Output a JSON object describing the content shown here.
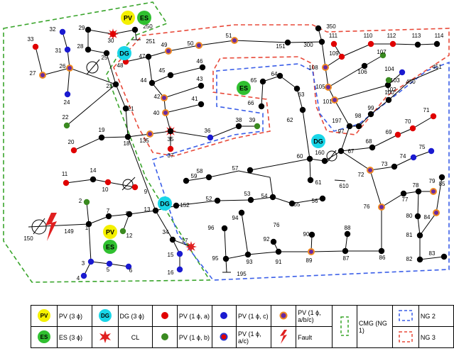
{
  "badges": [
    "PV",
    "ES",
    "DG",
    "ES",
    "DG",
    "DG",
    "PV",
    "ES"
  ],
  "nodes": [
    "33",
    "32",
    "31",
    "29",
    "30",
    "250",
    "251",
    "28",
    "27",
    "26",
    "25",
    "24",
    "23",
    "22",
    "21",
    "20",
    "19",
    "18",
    "135",
    "35",
    "37",
    "36",
    "38",
    "39",
    "48",
    "47",
    "49",
    "50",
    "51",
    "151",
    "300",
    "350",
    "45",
    "46",
    "44",
    "43",
    "42",
    "41",
    "40",
    "16",
    "15",
    "17",
    "34",
    "13",
    "152",
    "52",
    "53",
    "54",
    "55",
    "56",
    "57",
    "58",
    "59",
    "60",
    "61",
    "62",
    "63",
    "64",
    "65",
    "66",
    "160",
    "67",
    "610",
    "68",
    "69",
    "70",
    "71",
    "72",
    "73",
    "74",
    "75",
    "76",
    "77",
    "78",
    "79",
    "80",
    "81",
    "82",
    "83",
    "84",
    "85",
    "86",
    "87",
    "88",
    "89",
    "90",
    "91",
    "92",
    "93",
    "94",
    "95",
    "96",
    "195",
    "76",
    "97",
    "197",
    "98",
    "99",
    "100",
    "101",
    "102",
    "103",
    "104",
    "105",
    "106",
    "107",
    "108",
    "109",
    "110",
    "111",
    "112",
    "113",
    "114",
    "450",
    "451",
    "1",
    "2",
    "3",
    "4",
    "5",
    "6",
    "7",
    "8",
    "9",
    "10",
    "11",
    "12",
    "14",
    "149",
    "150"
  ],
  "legend": {
    "row1": [
      {
        "icon": "PV",
        "label": "PV (3 ϕ)"
      },
      {
        "icon": "DG",
        "label": "DG (3 ϕ)"
      },
      {
        "label": "PV (1 ϕ, a)"
      },
      {
        "label": "PV (1 ϕ, c)"
      },
      {
        "label": "PV (1 ϕ, a/b/c)"
      },
      {
        "label": "CMG (NG 1)"
      },
      {
        "label": "NG 2"
      }
    ],
    "row2": [
      {
        "icon": "ES",
        "label": "ES (3 ϕ)"
      },
      {
        "label": "CL"
      },
      {
        "label": "PV (1 ϕ, b)"
      },
      {
        "label": "PV (1 ϕ, a/c)"
      },
      {
        "label": "Fault"
      },
      {
        "label": "NG 3"
      }
    ]
  }
}
